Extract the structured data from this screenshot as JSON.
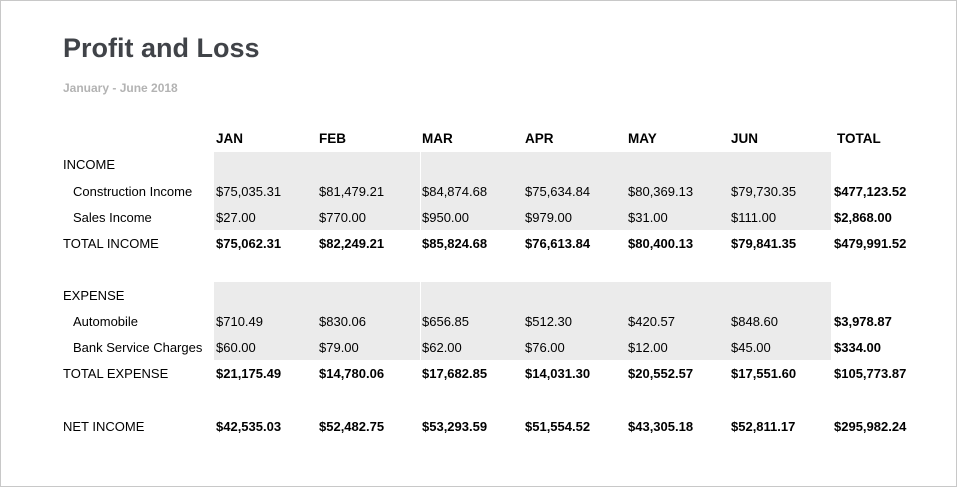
{
  "report": {
    "title": "Profit and Loss",
    "subtitle": "January - June 2018"
  },
  "columns": [
    "JAN",
    "FEB",
    "MAR",
    "APR",
    "MAY",
    "JUN",
    "TOTAL"
  ],
  "income": {
    "label": "INCOME",
    "rows": [
      {
        "label": "Construction Income",
        "values": [
          "$75,035.31",
          "$81,479.21",
          "$84,874.68",
          "$75,634.84",
          "$80,369.13",
          "$79,730.35",
          "$477,123.52"
        ]
      },
      {
        "label": "Sales Income",
        "values": [
          "$27.00",
          "$770.00",
          "$950.00",
          "$979.00",
          "$31.00",
          "$111.00",
          "$2,868.00"
        ]
      }
    ],
    "total": {
      "label": "TOTAL INCOME",
      "values": [
        "$75,062.31",
        "$82,249.21",
        "$85,824.68",
        "$76,613.84",
        "$80,400.13",
        "$79,841.35",
        "$479,991.52"
      ]
    }
  },
  "expense": {
    "label": "EXPENSE",
    "rows": [
      {
        "label": "Automobile",
        "values": [
          "$710.49",
          "$830.06",
          "$656.85",
          "$512.30",
          "$420.57",
          "$848.60",
          "$3,978.87"
        ]
      },
      {
        "label": "Bank Service Charges",
        "values": [
          "$60.00",
          "$79.00",
          "$62.00",
          "$76.00",
          "$12.00",
          "$45.00",
          "$334.00"
        ]
      }
    ],
    "total": {
      "label": "TOTAL EXPENSE",
      "values": [
        "$21,175.49",
        "$14,780.06",
        "$17,682.85",
        "$14,031.30",
        "$20,552.57",
        "$17,551.60",
        "$105,773.87"
      ]
    }
  },
  "net_income": {
    "label": "NET INCOME",
    "values": [
      "$42,535.03",
      "$52,482.75",
      "$53,293.59",
      "$51,554.52",
      "$43,305.18",
      "$52,811.17",
      "$295,982.24"
    ]
  }
}
